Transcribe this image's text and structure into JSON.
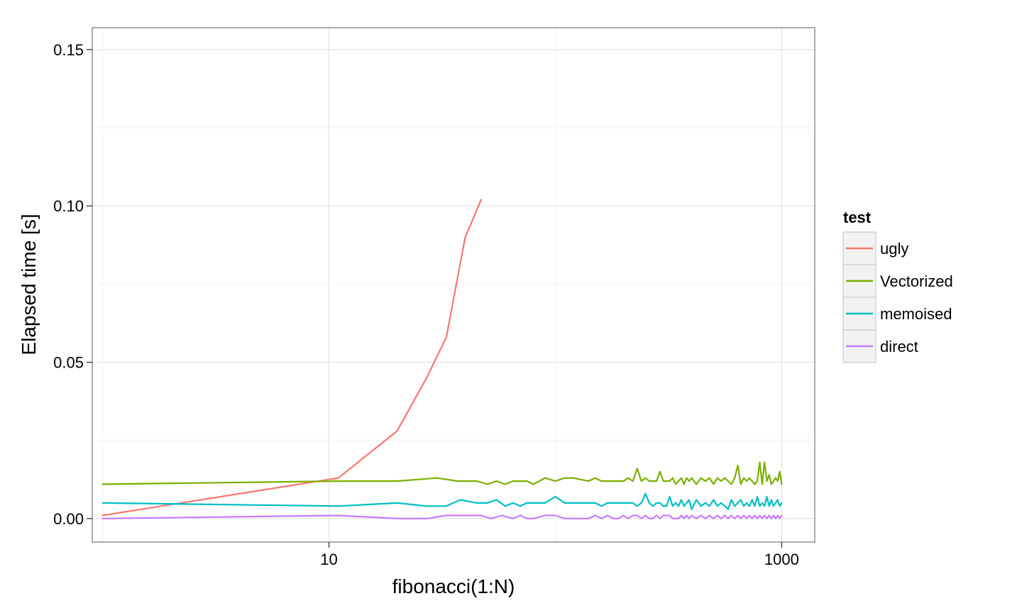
{
  "chart_data": {
    "type": "line",
    "title": "",
    "xlabel": "fibonacci(1:N)",
    "ylabel": "Elapsed time [s]",
    "x_scale": "log10",
    "xlim": [
      0.9,
      1400
    ],
    "ylim": [
      -0.0075,
      0.157
    ],
    "x_ticks": [
      10,
      1000
    ],
    "x_tick_labels": [
      "10",
      "1000"
    ],
    "y_ticks": [
      0,
      0.05,
      0.1,
      0.15
    ],
    "y_tick_labels": [
      "0.00",
      "0.05",
      "0.10",
      "0.15"
    ],
    "grid": true,
    "legend": {
      "title": "test",
      "position": "right"
    },
    "series": [
      {
        "name": "ugly",
        "color": "#F8766D",
        "x": [
          1,
          11,
          20,
          27,
          33,
          40,
          47
        ],
        "y": [
          0.001,
          0.013,
          0.028,
          0.045,
          0.058,
          0.09,
          0.102
        ]
      },
      {
        "name": "Vectorized",
        "color": "#7CAE00",
        "x": [
          1,
          11,
          20,
          30,
          37,
          45,
          50,
          55,
          60,
          65,
          70,
          75,
          80,
          90,
          100,
          110,
          120,
          140,
          150,
          160,
          170,
          180,
          190,
          200,
          210,
          220,
          230,
          240,
          250,
          260,
          270,
          280,
          290,
          300,
          310,
          320,
          330,
          340,
          350,
          360,
          370,
          380,
          390,
          400,
          420,
          440,
          460,
          480,
          500,
          520,
          540,
          560,
          580,
          600,
          620,
          640,
          660,
          680,
          700,
          720,
          740,
          760,
          780,
          800,
          820,
          840,
          860,
          880,
          900,
          920,
          940,
          960,
          980,
          1000
        ],
        "y": [
          0.011,
          0.012,
          0.012,
          0.013,
          0.012,
          0.012,
          0.011,
          0.012,
          0.011,
          0.012,
          0.012,
          0.012,
          0.011,
          0.013,
          0.012,
          0.013,
          0.013,
          0.012,
          0.013,
          0.012,
          0.012,
          0.012,
          0.012,
          0.012,
          0.013,
          0.012,
          0.016,
          0.012,
          0.013,
          0.012,
          0.012,
          0.012,
          0.015,
          0.012,
          0.012,
          0.012,
          0.013,
          0.011,
          0.012,
          0.013,
          0.011,
          0.013,
          0.012,
          0.013,
          0.011,
          0.013,
          0.012,
          0.013,
          0.011,
          0.013,
          0.012,
          0.013,
          0.012,
          0.011,
          0.013,
          0.017,
          0.011,
          0.013,
          0.012,
          0.013,
          0.012,
          0.011,
          0.012,
          0.018,
          0.011,
          0.018,
          0.012,
          0.014,
          0.011,
          0.012,
          0.013,
          0.012,
          0.015,
          0.011
        ]
      },
      {
        "name": "memoised",
        "color": "#00BFC4",
        "x": [
          1,
          11,
          20,
          27,
          33,
          38,
          45,
          50,
          55,
          60,
          65,
          70,
          75,
          80,
          90,
          100,
          110,
          120,
          140,
          150,
          160,
          170,
          180,
          190,
          200,
          210,
          220,
          230,
          240,
          250,
          260,
          270,
          280,
          290,
          300,
          310,
          320,
          330,
          340,
          350,
          360,
          370,
          380,
          390,
          400,
          420,
          440,
          460,
          480,
          500,
          520,
          540,
          560,
          580,
          600,
          620,
          640,
          660,
          680,
          700,
          720,
          740,
          760,
          780,
          800,
          820,
          840,
          860,
          880,
          900,
          920,
          940,
          960,
          980,
          1000
        ],
        "y": [
          0.005,
          0.004,
          0.005,
          0.004,
          0.004,
          0.006,
          0.005,
          0.005,
          0.006,
          0.004,
          0.005,
          0.004,
          0.005,
          0.005,
          0.005,
          0.007,
          0.005,
          0.005,
          0.005,
          0.005,
          0.004,
          0.005,
          0.005,
          0.005,
          0.005,
          0.005,
          0.005,
          0.004,
          0.005,
          0.008,
          0.005,
          0.004,
          0.005,
          0.005,
          0.004,
          0.004,
          0.007,
          0.004,
          0.005,
          0.004,
          0.006,
          0.004,
          0.005,
          0.006,
          0.003,
          0.006,
          0.004,
          0.005,
          0.004,
          0.006,
          0.004,
          0.005,
          0.004,
          0.003,
          0.006,
          0.004,
          0.005,
          0.006,
          0.004,
          0.005,
          0.004,
          0.006,
          0.004,
          0.007,
          0.004,
          0.005,
          0.004,
          0.007,
          0.004,
          0.006,
          0.004,
          0.005,
          0.006,
          0.004,
          0.005
        ]
      },
      {
        "name": "direct",
        "color": "#C77CFF",
        "x": [
          1,
          11,
          20,
          27,
          33,
          40,
          47,
          52,
          58,
          65,
          70,
          75,
          80,
          90,
          100,
          110,
          120,
          140,
          150,
          160,
          170,
          180,
          190,
          200,
          210,
          220,
          230,
          240,
          250,
          260,
          270,
          280,
          290,
          300,
          310,
          320,
          330,
          340,
          350,
          360,
          370,
          380,
          390,
          400,
          420,
          440,
          460,
          480,
          500,
          520,
          540,
          560,
          580,
          600,
          620,
          640,
          660,
          680,
          700,
          720,
          740,
          760,
          780,
          800,
          820,
          840,
          860,
          880,
          900,
          920,
          940,
          960,
          980,
          1000
        ],
        "y": [
          0,
          0.001,
          0,
          0,
          0.001,
          0.001,
          0.001,
          0,
          0.001,
          0,
          0.001,
          0,
          0,
          0.001,
          0.001,
          0,
          0,
          0,
          0.001,
          0,
          0.001,
          0,
          0,
          0.001,
          0,
          0.001,
          0.001,
          0,
          0.001,
          0,
          0,
          0.001,
          0,
          0.001,
          0.001,
          0.001,
          0,
          0,
          0,
          0.001,
          0,
          0.001,
          0,
          0.001,
          0,
          0.001,
          0,
          0.001,
          0,
          0.001,
          0,
          0.001,
          0,
          0.001,
          0,
          0.001,
          0,
          0.001,
          0,
          0.001,
          0,
          0.001,
          0,
          0.001,
          0,
          0.001,
          0,
          0.001,
          0,
          0.001,
          0,
          0.001,
          0,
          0.001
        ]
      }
    ]
  }
}
